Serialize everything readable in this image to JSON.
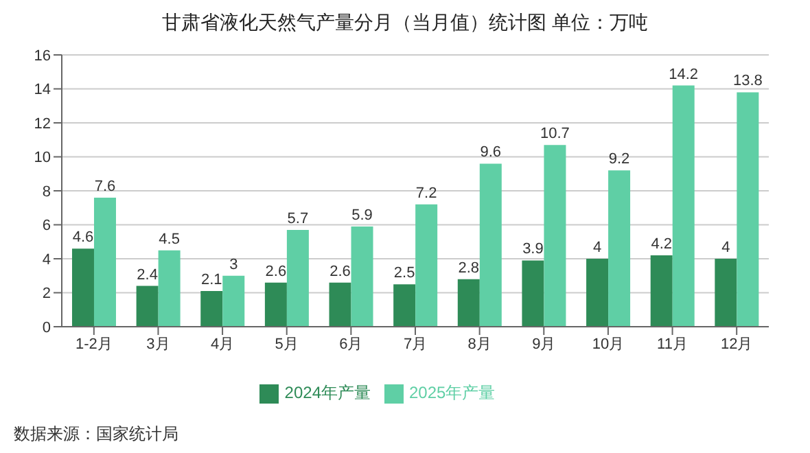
{
  "chart_data": {
    "type": "bar",
    "title": "甘肃省液化天然气产量分月（当月值）统计图 单位：万吨",
    "categories": [
      "1-2月",
      "3月",
      "4月",
      "5月",
      "6月",
      "7月",
      "8月",
      "9月",
      "10月",
      "11月",
      "12月"
    ],
    "series": [
      {
        "name": "2024年产量",
        "color": "#2e8b57",
        "values": [
          4.6,
          2.4,
          2.1,
          2.6,
          2.6,
          2.5,
          2.8,
          3.9,
          4,
          4.2,
          4
        ]
      },
      {
        "name": "2025年产量",
        "color": "#5fcfa5",
        "values": [
          7.6,
          4.5,
          3,
          5.7,
          5.9,
          7.2,
          9.6,
          10.7,
          9.2,
          14.2,
          13.8
        ]
      }
    ],
    "ylim": [
      0,
      16
    ],
    "yticks": [
      0,
      2,
      4,
      6,
      8,
      10,
      12,
      14,
      16
    ],
    "grid": "y",
    "legend": "bottom",
    "data_labels": true,
    "annotations": [
      "数据来源：国家统计局"
    ]
  }
}
